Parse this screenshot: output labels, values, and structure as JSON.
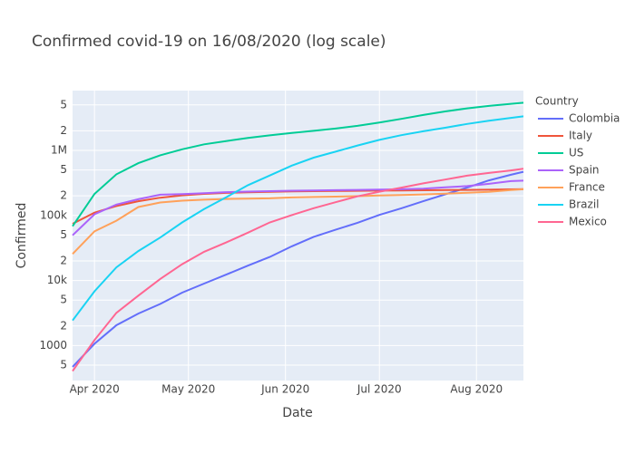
{
  "chart_data": {
    "type": "line",
    "title": "Confirmed covid-19 on 16/08/2020  (log scale)",
    "x_label": "Date",
    "y_label": "Confirmed",
    "legend_title": "Country",
    "log_y": true,
    "grid": true,
    "legend_position": "right",
    "x": [
      "2020-03-25",
      "2020-04-01",
      "2020-04-08",
      "2020-04-15",
      "2020-04-22",
      "2020-04-29",
      "2020-05-06",
      "2020-05-13",
      "2020-05-20",
      "2020-05-27",
      "2020-06-03",
      "2020-06-10",
      "2020-06-17",
      "2020-06-24",
      "2020-07-01",
      "2020-07-08",
      "2020-07-15",
      "2020-07-22",
      "2020-07-29",
      "2020-08-05",
      "2020-08-12",
      "2020-08-16"
    ],
    "xlim": [
      "2020-03-25",
      "2020-08-16"
    ],
    "xticks": [
      {
        "value": "2020-04-01",
        "label": "Apr 2020"
      },
      {
        "value": "2020-05-01",
        "label": "May 2020"
      },
      {
        "value": "2020-06-01",
        "label": "Jun 2020"
      },
      {
        "value": "2020-07-01",
        "label": "Jul 2020"
      },
      {
        "value": "2020-08-01",
        "label": "Aug 2020"
      }
    ],
    "ylim": [
      290,
      8300000
    ],
    "yticks": [
      {
        "value": 500,
        "label": "5"
      },
      1000,
      {
        "value": 2000,
        "label": "2"
      },
      {
        "value": 5000,
        "label": "5"
      },
      {
        "value": 10000,
        "label": "10k"
      },
      {
        "value": 20000,
        "label": "2"
      },
      {
        "value": 50000,
        "label": "5"
      },
      {
        "value": 100000,
        "label": "100k"
      },
      {
        "value": 200000,
        "label": "2"
      },
      {
        "value": 500000,
        "label": "5"
      },
      {
        "value": 1000000,
        "label": "1M"
      },
      {
        "value": 2000000,
        "label": "2"
      },
      {
        "value": 5000000,
        "label": "5"
      }
    ],
    "series": [
      {
        "name": "Colombia",
        "color": "#636efa",
        "values": [
          470,
          1065,
          2054,
          3105,
          4356,
          6507,
          8959,
          12272,
          16935,
          23003,
          33466,
          46858,
          60217,
          77113,
          102009,
          128638,
          165169,
          211038,
          267385,
          345714,
          422519,
          468332
        ]
      },
      {
        "name": "Italy",
        "color": "#ef553b",
        "values": [
          74386,
          110574,
          139422,
          165155,
          187327,
          203591,
          214457,
          222104,
          227364,
          231139,
          233836,
          235763,
          237828,
          239410,
          240760,
          242149,
          243506,
          245032,
          246776,
          248803,
          251713,
          253915
        ]
      },
      {
        "name": "US",
        "color": "#00cc96",
        "values": [
          68211,
          214205,
          429052,
          636350,
          840351,
          1039909,
          1237633,
          1390406,
          1551853,
          1699933,
          1851520,
          2000702,
          2163290,
          2382426,
          2686480,
          3055101,
          3499398,
          3970906,
          4426982,
          4823890,
          5197411,
          5401167
        ]
      },
      {
        "name": "Spain",
        "color": "#ab63fa",
        "values": [
          49515,
          104118,
          146690,
          177633,
          208389,
          212917,
          220325,
          228030,
          232555,
          236259,
          240326,
          242280,
          244683,
          247086,
          249659,
          252513,
          257494,
          270166,
          282641,
          305767,
          337334,
          342813
        ]
      },
      {
        "name": "France",
        "color": "#ffa15a",
        "values": [
          25600,
          56989,
          83080,
          134582,
          158303,
          168518,
          174918,
          178994,
          181575,
          183067,
          189220,
          192493,
          195042,
          197885,
          202981,
          206696,
          210536,
          216896,
          222608,
          229814,
          245019,
          252219
        ]
      },
      {
        "name": "Brazil",
        "color": "#19d3f3",
        "values": [
          2433,
          6836,
          15927,
          28320,
          45757,
          78162,
          125218,
          188974,
          291579,
          411821,
          584016,
          772416,
          955377,
          1188631,
          1448753,
          1713160,
          1966748,
          2227514,
          2552265,
          2859073,
          3164785,
          3340197
        ]
      },
      {
        "name": "Mexico",
        "color": "#ff6692",
        "values": [
          405,
          1215,
          3181,
          5847,
          10544,
          17799,
          27634,
          38324,
          54346,
          78023,
          101238,
          129184,
          159793,
          196847,
          231770,
          268008,
          311486,
          356255,
          408052,
          449961,
          492522,
          522162
        ]
      }
    ]
  }
}
